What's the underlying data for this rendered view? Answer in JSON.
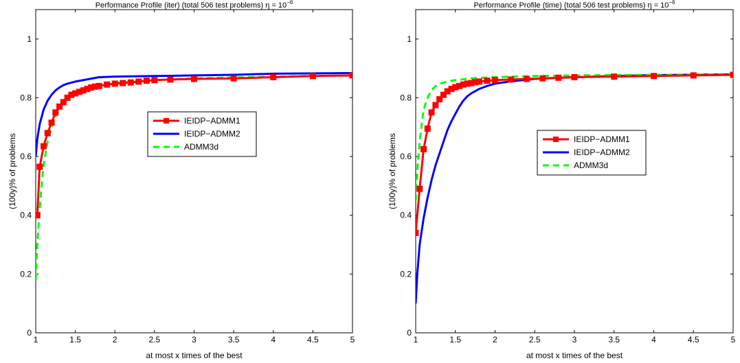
{
  "chart_data": [
    {
      "type": "line",
      "title_main": "Performance Profile (iter) (total 506 test problems) η = 10",
      "title_exp": "−6",
      "xlabel": "at most x times of the best",
      "ylabel": "(100y)% of problems",
      "xlim": [
        1,
        5
      ],
      "ylim": [
        0,
        1.1
      ],
      "xticks": [
        "1",
        "1.5",
        "2",
        "2.5",
        "3",
        "3.5",
        "4",
        "4.5",
        "5"
      ],
      "yticks": [
        "0",
        "0.2",
        "0.4",
        "0.6",
        "0.8",
        "1"
      ],
      "grid": false,
      "legend_position": "center",
      "series": [
        {
          "name": "IEIDP−ADMM1",
          "color": "#ff0000",
          "dash": "solid",
          "marker": "square",
          "x": [
            1.0,
            1.02,
            1.05,
            1.1,
            1.15,
            1.2,
            1.25,
            1.3,
            1.35,
            1.4,
            1.45,
            1.5,
            1.55,
            1.6,
            1.65,
            1.7,
            1.75,
            1.8,
            1.9,
            2.0,
            2.1,
            2.2,
            2.3,
            2.4,
            2.5,
            2.7,
            3.0,
            3.5,
            4.0,
            4.5,
            5.0
          ],
          "y": [
            0.4,
            0.4,
            0.565,
            0.635,
            0.68,
            0.715,
            0.75,
            0.77,
            0.785,
            0.8,
            0.81,
            0.815,
            0.82,
            0.825,
            0.83,
            0.835,
            0.838,
            0.84,
            0.845,
            0.848,
            0.85,
            0.852,
            0.855,
            0.858,
            0.86,
            0.862,
            0.864,
            0.866,
            0.87,
            0.874,
            0.876
          ]
        },
        {
          "name": "IEIDP−ADMM2",
          "color": "#0000ff",
          "dash": "solid",
          "marker": "none",
          "x": [
            1.0,
            1.02,
            1.05,
            1.1,
            1.15,
            1.2,
            1.25,
            1.3,
            1.35,
            1.4,
            1.5,
            1.6,
            1.7,
            1.8,
            2.0,
            2.5,
            3.0,
            3.5,
            4.0,
            5.0
          ],
          "y": [
            0.6,
            0.66,
            0.71,
            0.76,
            0.79,
            0.81,
            0.825,
            0.835,
            0.843,
            0.848,
            0.855,
            0.86,
            0.865,
            0.87,
            0.872,
            0.874,
            0.876,
            0.878,
            0.882,
            0.884
          ]
        },
        {
          "name": "ADMM3d",
          "color": "#00ff00",
          "dash": "dashed",
          "marker": "none",
          "x": [
            1.0,
            1.02,
            1.05,
            1.08,
            1.1,
            1.15,
            1.2,
            1.25,
            1.3,
            1.35,
            1.4,
            1.5,
            1.6,
            1.7,
            1.8,
            2.0,
            2.5,
            3.0,
            4.0,
            5.0
          ],
          "y": [
            0.18,
            0.3,
            0.42,
            0.52,
            0.57,
            0.65,
            0.7,
            0.735,
            0.76,
            0.78,
            0.795,
            0.815,
            0.83,
            0.838,
            0.845,
            0.85,
            0.86,
            0.866,
            0.872,
            0.876
          ]
        }
      ]
    },
    {
      "type": "line",
      "title_main": "Performance Profile (time) (total 506 test problems) η = 10",
      "title_exp": "−6",
      "xlabel": "at most x times of the best",
      "ylabel": "(100y)% of problems",
      "xlim": [
        1,
        5
      ],
      "ylim": [
        0,
        1.1
      ],
      "xticks": [
        "1",
        "1.5",
        "2",
        "2.5",
        "3",
        "3.5",
        "4",
        "4.5",
        "5"
      ],
      "yticks": [
        "0",
        "0.2",
        "0.4",
        "0.6",
        "0.8",
        "1"
      ],
      "grid": false,
      "legend_position": "center",
      "series": [
        {
          "name": "IEIDP−ADMM1",
          "color": "#ff0000",
          "dash": "solid",
          "marker": "square",
          "x": [
            1.0,
            1.05,
            1.1,
            1.15,
            1.2,
            1.25,
            1.3,
            1.35,
            1.4,
            1.45,
            1.5,
            1.55,
            1.6,
            1.65,
            1.7,
            1.75,
            1.8,
            1.9,
            2.0,
            2.2,
            2.4,
            2.6,
            2.8,
            3.0,
            3.5,
            4.0,
            4.5,
            5.0
          ],
          "y": [
            0.34,
            0.49,
            0.625,
            0.695,
            0.75,
            0.775,
            0.795,
            0.81,
            0.822,
            0.83,
            0.836,
            0.84,
            0.845,
            0.848,
            0.85,
            0.853,
            0.855,
            0.858,
            0.86,
            0.862,
            0.864,
            0.866,
            0.868,
            0.87,
            0.872,
            0.874,
            0.876,
            0.878
          ]
        },
        {
          "name": "IEIDP−ADMM2",
          "color": "#0000ff",
          "dash": "solid",
          "marker": "none",
          "x": [
            1.0,
            1.02,
            1.05,
            1.1,
            1.15,
            1.2,
            1.25,
            1.3,
            1.35,
            1.4,
            1.45,
            1.5,
            1.55,
            1.6,
            1.65,
            1.7,
            1.8,
            1.9,
            2.0,
            2.2,
            2.5,
            3.0,
            3.5,
            4.0,
            5.0
          ],
          "y": [
            0.1,
            0.2,
            0.3,
            0.39,
            0.46,
            0.52,
            0.57,
            0.61,
            0.65,
            0.69,
            0.72,
            0.745,
            0.77,
            0.79,
            0.805,
            0.815,
            0.83,
            0.84,
            0.848,
            0.856,
            0.864,
            0.87,
            0.874,
            0.877,
            0.88
          ]
        },
        {
          "name": "ADMM3d",
          "color": "#00ff00",
          "dash": "dashed",
          "marker": "none",
          "x": [
            1.0,
            1.02,
            1.05,
            1.08,
            1.1,
            1.15,
            1.2,
            1.25,
            1.3,
            1.4,
            1.5,
            1.7,
            2.0,
            2.5,
            3.0,
            4.0,
            5.0
          ],
          "y": [
            0.45,
            0.55,
            0.65,
            0.72,
            0.76,
            0.8,
            0.825,
            0.84,
            0.848,
            0.855,
            0.86,
            0.866,
            0.87,
            0.874,
            0.876,
            0.878,
            0.88
          ]
        }
      ]
    }
  ]
}
